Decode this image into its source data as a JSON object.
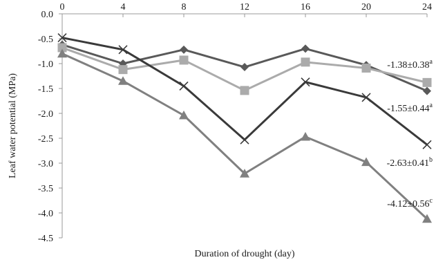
{
  "chart_data": {
    "type": "line",
    "title": "",
    "xlabel": "Duration of drought (day)",
    "ylabel": "Leaf  water potential (MPa)",
    "x": [
      0,
      4,
      8,
      12,
      16,
      20,
      24
    ],
    "x_tick_labels": [
      "0",
      "4",
      "8",
      "12",
      "16",
      "20",
      "24"
    ],
    "y_tick_values": [
      0.0,
      -0.5,
      -1.0,
      -1.5,
      -2.0,
      -2.5,
      -3.0,
      -3.5,
      -4.0,
      -4.5
    ],
    "y_tick_labels": [
      "0.0",
      "-0.5",
      "-1.0",
      "-1.5",
      "-2.0",
      "-2.5",
      "-3.0",
      "-3.5",
      "-4.0",
      "-4.5"
    ],
    "ylim": [
      -4.5,
      0.0
    ],
    "xlim": [
      0,
      24
    ],
    "x_axis_position": "top",
    "grid": false,
    "legend": "none",
    "series": [
      {
        "marker": "diamond",
        "color": "#595959",
        "values": [
          -0.62,
          -1.0,
          -0.72,
          -1.07,
          -0.7,
          -1.03,
          -1.55
        ]
      },
      {
        "marker": "square",
        "color": "#ababab",
        "values": [
          -0.68,
          -1.12,
          -0.93,
          -1.54,
          -0.97,
          -1.09,
          -1.38
        ]
      },
      {
        "marker": "cross",
        "color": "#3a3a3a",
        "values": [
          -0.48,
          -0.72,
          -1.45,
          -2.53,
          -1.37,
          -1.68,
          -2.63
        ]
      },
      {
        "marker": "triangle",
        "color": "#808080",
        "values": [
          -0.8,
          -1.35,
          -2.04,
          -3.21,
          -2.47,
          -2.98,
          -4.12
        ]
      }
    ],
    "annotations": [
      {
        "text": "-1.38±0.38",
        "sup": "a",
        "series": 1
      },
      {
        "text": "-1.55±0.44",
        "sup": "a",
        "series": 0
      },
      {
        "text": "-2.63±0.41",
        "sup": "b",
        "series": 2
      },
      {
        "text": "-4.12±0.56",
        "sup": "c",
        "series": 3
      }
    ]
  }
}
